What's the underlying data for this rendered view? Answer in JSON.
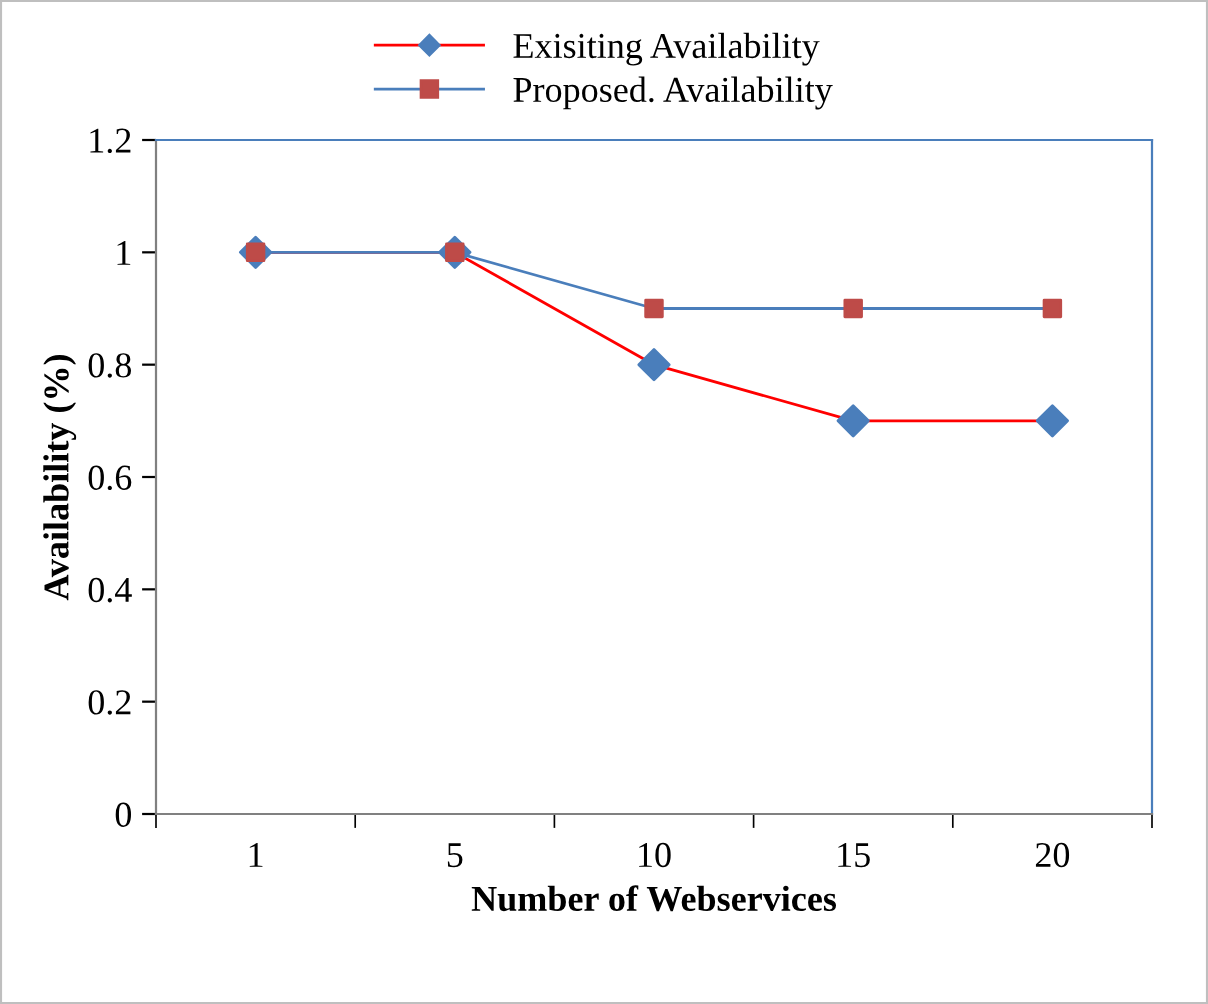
{
  "chart_data": {
    "type": "line",
    "xlabel": "Number of Webservices",
    "ylabel": "Availability (%)",
    "categories": [
      "1",
      "5",
      "10",
      "15",
      "20"
    ],
    "series": [
      {
        "name": "Exisiting Availability",
        "color": "#ff0000",
        "marker": "diamond",
        "colors": [
          "#4a7ebb",
          "#4a7ebb",
          "#4a7ebb",
          "#4a7ebb",
          "#4a7ebb"
        ],
        "values": [
          1,
          1,
          0.8,
          0.7,
          0.7
        ]
      },
      {
        "name": "Proposed. Availability",
        "color": "#4a7ebb",
        "marker": "square",
        "colors": [
          "#be4b48",
          "#be4b48",
          "#be4b48",
          "#be4b48",
          "#be4b48"
        ],
        "values": [
          1,
          1,
          0.9,
          0.9,
          0.9
        ]
      }
    ],
    "ylim": [
      0,
      1.2
    ],
    "yticks": [
      0,
      0.2,
      0.4,
      0.6,
      0.8,
      1,
      1.2
    ],
    "grid": false,
    "legend": "top"
  }
}
